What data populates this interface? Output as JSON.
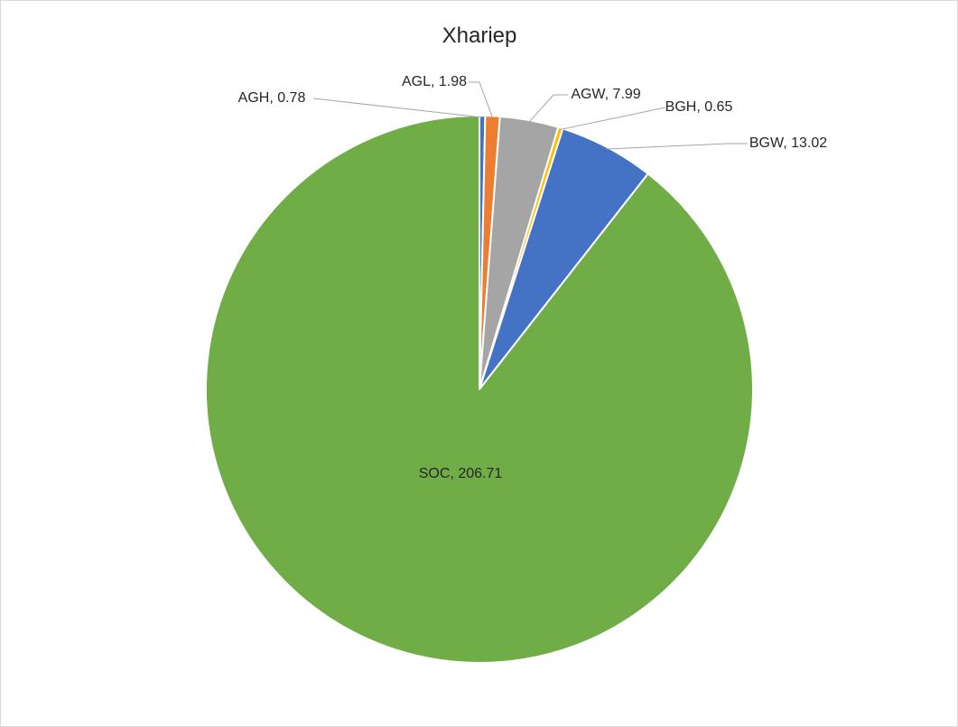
{
  "chart_data": {
    "type": "pie",
    "title": "Xhariep",
    "start_angle_deg": 0,
    "direction": "clockwise",
    "label_format": "{name}, {value}",
    "slices": [
      {
        "name": "AGH",
        "value": 0.78,
        "color": "#4472C4"
      },
      {
        "name": "AGL",
        "value": 1.98,
        "color": "#ED7D31"
      },
      {
        "name": "AGW",
        "value": 7.99,
        "color": "#A5A5A5"
      },
      {
        "name": "BGH",
        "value": 0.65,
        "color": "#FFC000"
      },
      {
        "name": "BGW",
        "value": 13.02,
        "color": "#4472C4"
      },
      {
        "name": "SOC",
        "value": 206.71,
        "color": "#70AD47"
      }
    ]
  }
}
